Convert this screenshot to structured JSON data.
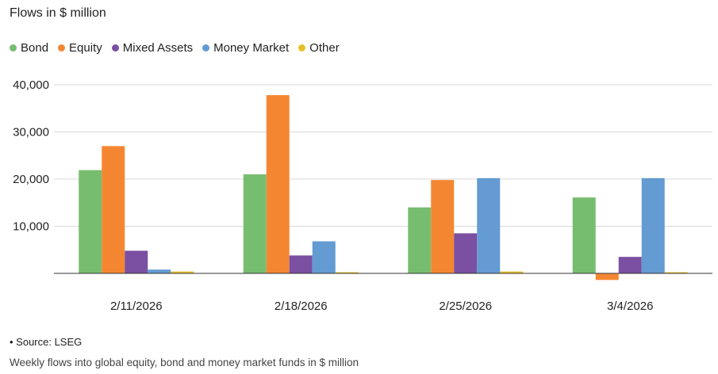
{
  "chart_data": {
    "type": "bar",
    "title": "Flows in $ million",
    "categories": [
      "2/11/2026",
      "2/18/2026",
      "2/25/2026",
      "3/4/2026"
    ],
    "series": [
      {
        "name": "Bond",
        "color": "#77bd6f",
        "values": [
          21900,
          21000,
          14000,
          16100
        ]
      },
      {
        "name": "Equity",
        "color": "#f58631",
        "values": [
          27000,
          37800,
          19800,
          -1400
        ]
      },
      {
        "name": "Mixed Assets",
        "color": "#7b4fa1",
        "values": [
          4800,
          3800,
          8500,
          3500
        ]
      },
      {
        "name": "Money Market",
        "color": "#639bd2",
        "values": [
          800,
          6800,
          20200,
          20200
        ]
      },
      {
        "name": "Other",
        "color": "#e8bf2a",
        "values": [
          400,
          150,
          400,
          200
        ]
      }
    ],
    "ylim": [
      -1500,
      40000
    ],
    "yticks": [
      10000,
      20000,
      30000,
      40000
    ],
    "ytick_labels": [
      "10,000",
      "20,000",
      "30,000",
      "40,000"
    ],
    "grid": true,
    "legend_position": "top-left"
  },
  "footer": {
    "source": "• Source: LSEG",
    "caption": "Weekly flows into global equity, bond and money market funds in $ million"
  }
}
